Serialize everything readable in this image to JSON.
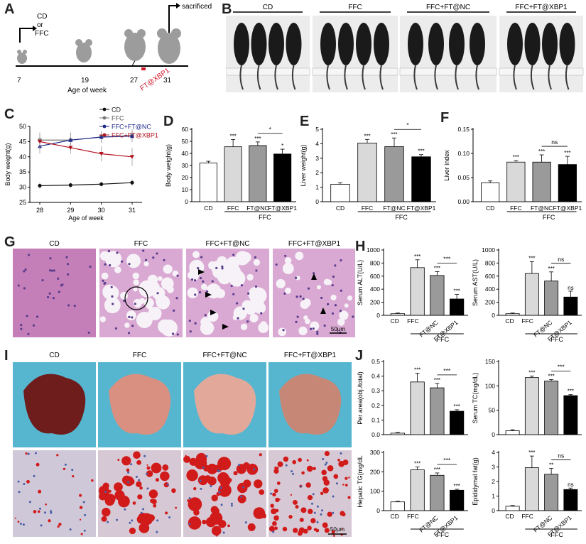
{
  "panel_letters": [
    "A",
    "B",
    "C",
    "D",
    "E",
    "F",
    "G",
    "H",
    "I",
    "J"
  ],
  "panelA": {
    "start_label": [
      "CD",
      "or",
      "FFC"
    ],
    "sacrificed_label": "sacrificed",
    "ticks": [
      "7",
      "19",
      "27",
      "31"
    ],
    "xlabel": "Age of week",
    "treatment_label": "FT@XBP1",
    "colors": {
      "mouse": "#9c9c9c",
      "treat": "#d0192b"
    }
  },
  "panelB": {
    "groups": [
      "CD",
      "FFC",
      "FFC+FT@NC",
      "FFC+FT@XBP1"
    ]
  },
  "groupsG": [
    "CD",
    "FFC",
    "FFC+FT@NC",
    "FFC+FT@XBP1"
  ],
  "groupsI": [
    "CD",
    "FFC",
    "FFC+FT@NC",
    "FFC+FT@XBP1"
  ],
  "scale_bar": "50μm",
  "categories": [
    "CD",
    "FFC",
    "FT@NC",
    "FT@XBP1"
  ],
  "group_label": "FFC",
  "bar_colors": [
    "#ffffff",
    "#d9d9d9",
    "#9a9a9a",
    "#000000"
  ],
  "chart_data": [
    {
      "id": "C",
      "type": "line",
      "ylabel": "Body weight(g)",
      "xlabel": "Age of week",
      "x": [
        28,
        29,
        30,
        31
      ],
      "ylim": [
        25,
        50
      ],
      "yticks": [
        25,
        30,
        35,
        40,
        45,
        50
      ],
      "series": [
        {
          "name": "CD",
          "color": "#111111",
          "marker": "circle",
          "values": [
            30.5,
            30.7,
            31.0,
            31.5
          ],
          "err": [
            1.0,
            0.8,
            0.8,
            1.0
          ]
        },
        {
          "name": "FFC",
          "color": "#777777",
          "marker": "square",
          "values": [
            45.5,
            45.5,
            46.5,
            47.0
          ],
          "err": [
            2.5,
            2.5,
            2.0,
            2.0
          ]
        },
        {
          "name": "FFC+FT@NC",
          "color": "#1f2a8a",
          "marker": "triangle",
          "values": [
            43.5,
            45.5,
            46.5,
            46.8
          ],
          "err": [
            2.5,
            2.5,
            2.0,
            2.0
          ]
        },
        {
          "name": "FFC+FT@XBP1",
          "color": "#b3121f",
          "marker": "triangle-down",
          "values": [
            45.0,
            43.0,
            41.0,
            40.0
          ],
          "err": [
            2.5,
            2.0,
            2.5,
            3.0
          ]
        }
      ]
    },
    {
      "id": "D",
      "type": "bar",
      "ylabel": "Body weight(g)",
      "ylim": [
        0,
        60
      ],
      "yticks": [
        0,
        10,
        20,
        30,
        40,
        50,
        60
      ],
      "values": [
        32,
        45.5,
        46.5,
        39.5
      ],
      "err": [
        1.5,
        6,
        3,
        4
      ],
      "stars": [
        "",
        "***",
        "***",
        "*"
      ],
      "compare": {
        "from": 2,
        "to": 3,
        "label": "*"
      }
    },
    {
      "id": "E",
      "type": "bar",
      "ylabel": "Liver weight(g)",
      "ylim": [
        0,
        5
      ],
      "yticks": [
        0,
        1,
        2,
        3,
        4,
        5
      ],
      "values": [
        1.2,
        4.05,
        3.8,
        3.1
      ],
      "err": [
        0.1,
        0.25,
        0.6,
        0.15
      ],
      "stars": [
        "",
        "***",
        "***",
        "***"
      ],
      "compare": {
        "from": 2,
        "to": 3,
        "label": "*"
      }
    },
    {
      "id": "F",
      "type": "bar",
      "ylabel": "Liver index",
      "ylim": [
        0,
        0.15
      ],
      "yticks": [
        0.0,
        0.05,
        0.1,
        0.15
      ],
      "ytick_labels": [
        "0.00",
        "0.05",
        "0.10",
        "0.15"
      ],
      "values": [
        0.039,
        0.082,
        0.082,
        0.077
      ],
      "err": [
        0.004,
        0.003,
        0.015,
        0.017
      ],
      "stars": [
        "",
        "***",
        "***",
        "***"
      ],
      "compare": {
        "from": 2,
        "to": 3,
        "label": "ns"
      }
    },
    {
      "id": "H1",
      "type": "bar",
      "ylabel": "Serum ALT(U/L)",
      "ylim": [
        0,
        1000
      ],
      "yticks": [
        0,
        200,
        400,
        600,
        800,
        1000
      ],
      "values": [
        25,
        730,
        610,
        250
      ],
      "err": [
        10,
        120,
        60,
        70
      ],
      "stars": [
        "",
        "***",
        "***",
        "***"
      ],
      "compare": {
        "from": 2,
        "to": 3,
        "label": "***"
      }
    },
    {
      "id": "H2",
      "type": "bar",
      "ylabel": "Serum AST(U/L)",
      "ylim": [
        0,
        1000
      ],
      "yticks": [
        0,
        200,
        400,
        600,
        800,
        1000
      ],
      "values": [
        25,
        640,
        525,
        280
      ],
      "err": [
        10,
        180,
        140,
        90
      ],
      "stars": [
        "",
        "***",
        "***",
        "ns"
      ],
      "compare": {
        "from": 2,
        "to": 3,
        "label": "ns"
      }
    },
    {
      "id": "J1",
      "type": "bar",
      "ylabel": "Per area(obj./total)",
      "ylim": [
        0,
        0.5
      ],
      "yticks": [
        0.0,
        0.1,
        0.2,
        0.3,
        0.4,
        0.5
      ],
      "ytick_labels": [
        "0.0",
        "0.1",
        "0.2",
        "0.3",
        "0.4",
        "0.5"
      ],
      "values": [
        0.01,
        0.36,
        0.32,
        0.16
      ],
      "err": [
        0.005,
        0.06,
        0.03,
        0.01
      ],
      "stars": [
        "",
        "***",
        "***",
        "***"
      ],
      "compare": {
        "from": 2,
        "to": 3,
        "label": "***"
      }
    },
    {
      "id": "J2",
      "type": "bar",
      "ylabel": "Serum TC(mg/dL)",
      "ylim": [
        0,
        150
      ],
      "yticks": [
        0,
        50,
        100,
        150
      ],
      "values": [
        8,
        117,
        110,
        80
      ],
      "err": [
        2,
        3,
        3,
        2
      ],
      "stars": [
        "",
        "***",
        "***",
        "***"
      ],
      "compare": {
        "from": 2,
        "to": 3,
        "label": "***"
      }
    },
    {
      "id": "J3",
      "type": "bar",
      "ylabel": "Hepatic TG(mg/dL",
      "ylim": [
        0,
        300
      ],
      "yticks": [
        0,
        100,
        200,
        300
      ],
      "values": [
        45,
        210,
        182,
        105
      ],
      "err": [
        3,
        15,
        12,
        5
      ],
      "stars": [
        "",
        "***",
        "***",
        "***"
      ],
      "compare": {
        "from": 2,
        "to": 3,
        "label": "***"
      }
    },
    {
      "id": "J4",
      "type": "bar",
      "ylabel": "Epididymal fat(g)",
      "ylim": [
        0,
        4
      ],
      "yticks": [
        0,
        1,
        2,
        3,
        4
      ],
      "values": [
        0.3,
        2.95,
        2.5,
        1.45
      ],
      "err": [
        0.05,
        0.8,
        0.4,
        0.1
      ],
      "stars": [
        "",
        "***",
        "**",
        "ns"
      ],
      "compare": {
        "from": 2,
        "to": 3,
        "label": "ns"
      }
    }
  ]
}
